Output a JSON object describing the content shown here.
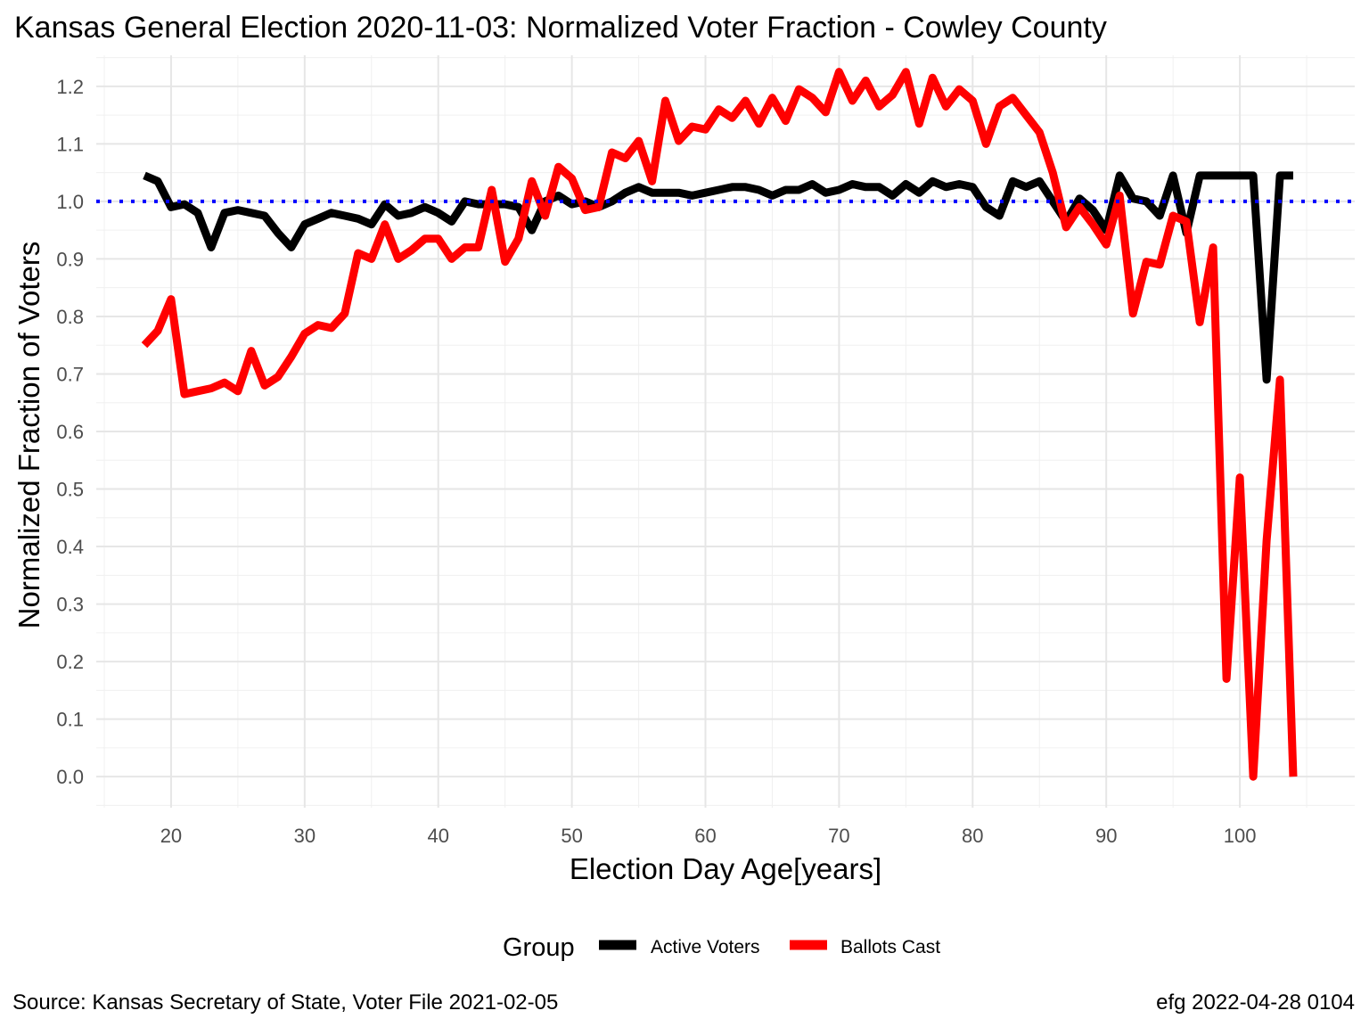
{
  "chart_data": {
    "type": "line",
    "title": "Kansas General Election 2020-11-03:  Normalized Voter Fraction - Cowley County",
    "xlabel": "Election Day Age[years]",
    "ylabel": "Normalized Fraction of Voters",
    "xlim": [
      14.4,
      108.6
    ],
    "ylim": [
      -0.054,
      1.254
    ],
    "x_ticks": [
      "20",
      "30",
      "40",
      "50",
      "60",
      "70",
      "80",
      "90",
      "100"
    ],
    "x_tick_values": [
      20,
      30,
      40,
      50,
      60,
      70,
      80,
      90,
      100
    ],
    "y_ticks": [
      "0.0",
      "0.1",
      "0.2",
      "0.3",
      "0.4",
      "0.5",
      "0.6",
      "0.7",
      "0.8",
      "0.9",
      "1.0",
      "1.1",
      "1.2"
    ],
    "y_tick_values": [
      0.0,
      0.1,
      0.2,
      0.3,
      0.4,
      0.5,
      0.6,
      0.7,
      0.8,
      0.9,
      1.0,
      1.1,
      1.2
    ],
    "grid": true,
    "reference_line": {
      "y": 1.0,
      "style": "dotted",
      "color": "#0000ff"
    },
    "legend": {
      "title": "Group",
      "position": "bottom"
    },
    "series": [
      {
        "name": "Active Voters",
        "color": "#000000",
        "x": [
          18,
          19,
          20,
          21,
          22,
          23,
          24,
          25,
          26,
          27,
          28,
          29,
          30,
          31,
          32,
          33,
          34,
          35,
          36,
          37,
          38,
          39,
          40,
          41,
          42,
          43,
          44,
          45,
          46,
          47,
          48,
          49,
          50,
          51,
          52,
          53,
          54,
          55,
          56,
          57,
          58,
          59,
          60,
          61,
          62,
          63,
          64,
          65,
          66,
          67,
          68,
          69,
          70,
          71,
          72,
          73,
          74,
          75,
          76,
          77,
          78,
          79,
          80,
          81,
          82,
          83,
          84,
          85,
          86,
          87,
          88,
          89,
          90,
          91,
          92,
          93,
          94,
          95,
          96,
          97,
          98,
          99,
          100,
          101,
          102,
          103,
          104
        ],
        "y": [
          1.045,
          1.035,
          0.99,
          0.995,
          0.98,
          0.92,
          0.98,
          0.985,
          0.98,
          0.975,
          0.945,
          0.92,
          0.96,
          0.97,
          0.98,
          0.975,
          0.97,
          0.96,
          0.995,
          0.975,
          0.98,
          0.99,
          0.98,
          0.965,
          1.0,
          0.995,
          0.995,
          0.995,
          0.99,
          0.95,
          1.0,
          1.01,
          0.995,
          1.0,
          0.99,
          1.0,
          1.015,
          1.025,
          1.015,
          1.015,
          1.015,
          1.01,
          1.015,
          1.02,
          1.025,
          1.025,
          1.02,
          1.01,
          1.02,
          1.02,
          1.03,
          1.015,
          1.02,
          1.03,
          1.025,
          1.025,
          1.01,
          1.03,
          1.015,
          1.035,
          1.025,
          1.03,
          1.025,
          0.99,
          0.975,
          1.035,
          1.025,
          1.035,
          1.0,
          0.965,
          1.005,
          0.985,
          0.95,
          1.045,
          1.005,
          1.0,
          0.975,
          1.045,
          0.945,
          1.045,
          1.045,
          1.045,
          1.045,
          1.045,
          0.69,
          1.045,
          1.045
        ]
      },
      {
        "name": "Ballots Cast",
        "color": "#ff0000",
        "x": [
          18,
          19,
          20,
          21,
          22,
          23,
          24,
          25,
          26,
          27,
          28,
          29,
          30,
          31,
          32,
          33,
          34,
          35,
          36,
          37,
          38,
          39,
          40,
          41,
          42,
          43,
          44,
          45,
          46,
          47,
          48,
          49,
          50,
          51,
          52,
          53,
          54,
          55,
          56,
          57,
          58,
          59,
          60,
          61,
          62,
          63,
          64,
          65,
          66,
          67,
          68,
          69,
          70,
          71,
          72,
          73,
          74,
          75,
          76,
          77,
          78,
          79,
          80,
          81,
          82,
          83,
          84,
          85,
          86,
          87,
          88,
          89,
          90,
          91,
          92,
          93,
          94,
          95,
          96,
          97,
          98,
          99,
          100,
          101,
          102,
          103,
          104
        ],
        "y": [
          0.75,
          0.775,
          0.83,
          0.665,
          0.67,
          0.675,
          0.685,
          0.67,
          0.74,
          0.68,
          0.695,
          0.73,
          0.77,
          0.785,
          0.78,
          0.805,
          0.91,
          0.9,
          0.96,
          0.9,
          0.915,
          0.935,
          0.935,
          0.9,
          0.92,
          0.92,
          1.02,
          0.895,
          0.935,
          1.035,
          0.975,
          1.06,
          1.04,
          0.985,
          0.99,
          1.085,
          1.075,
          1.105,
          1.035,
          1.175,
          1.105,
          1.13,
          1.125,
          1.16,
          1.145,
          1.175,
          1.135,
          1.18,
          1.14,
          1.195,
          1.18,
          1.155,
          1.225,
          1.175,
          1.21,
          1.165,
          1.185,
          1.225,
          1.135,
          1.215,
          1.165,
          1.195,
          1.175,
          1.1,
          1.165,
          1.18,
          1.15,
          1.12,
          1.05,
          0.955,
          0.99,
          0.96,
          0.925,
          1.01,
          0.805,
          0.895,
          0.89,
          0.975,
          0.965,
          0.79,
          0.92,
          0.17,
          0.52,
          0.0,
          0.41,
          0.69,
          0.0
        ]
      }
    ]
  },
  "caption": {
    "source": "Source:  Kansas Secretary of State, Voter File  2021-02-05",
    "credit": "efg 2022-04-28 0104"
  }
}
